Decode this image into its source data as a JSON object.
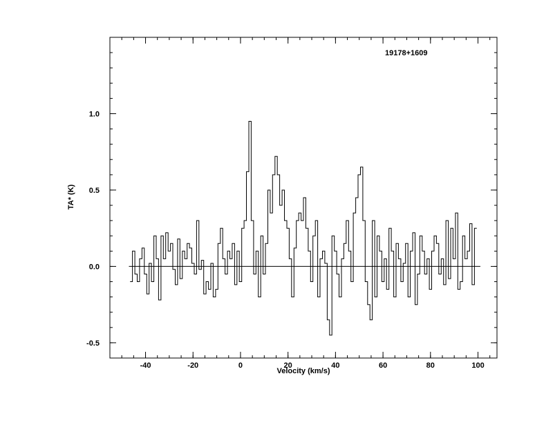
{
  "chart_data": {
    "type": "line",
    "step": true,
    "title": "",
    "annotation": "19178+1609",
    "xlabel": "Velocity (km/s)",
    "ylabel": "TA* (K)",
    "xlim": [
      -55,
      108
    ],
    "ylim": [
      -0.6,
      1.5
    ],
    "xticks": [
      -40,
      -20,
      0,
      20,
      40,
      60,
      80,
      100
    ],
    "xtick_labels": [
      "-40",
      "-20",
      "0",
      "20",
      "40",
      "60",
      "80",
      "100"
    ],
    "yticks": [
      -0.5,
      0.0,
      0.5,
      1.0
    ],
    "ytick_labels": [
      "-0.5",
      "0.0",
      "0.5",
      "1.0"
    ],
    "baseline": 0.0,
    "baseline_range": [
      -47,
      101
    ],
    "colors": {
      "line": "#000000",
      "axes": "#000000",
      "background": "#ffffff"
    },
    "series": [
      {
        "x": [
          -46,
          -45,
          -44,
          -43,
          -42,
          -41,
          -40,
          -39,
          -38,
          -37,
          -36,
          -35,
          -34,
          -33,
          -32,
          -31,
          -30,
          -29,
          -28,
          -27,
          -26,
          -25,
          -24,
          -23,
          -22,
          -21,
          -20,
          -19,
          -18,
          -17,
          -16,
          -15,
          -14,
          -13,
          -12,
          -11,
          -10,
          -9,
          -8,
          -7,
          -6,
          -5,
          -4,
          -3,
          -2,
          -1,
          0,
          1,
          2,
          3,
          4,
          5,
          6,
          7,
          8,
          9,
          10,
          11,
          12,
          13,
          14,
          15,
          16,
          17,
          18,
          19,
          20,
          21,
          22,
          23,
          24,
          25,
          26,
          27,
          28,
          29,
          30,
          31,
          32,
          33,
          34,
          35,
          36,
          37,
          38,
          39,
          40,
          41,
          42,
          43,
          44,
          45,
          46,
          47,
          48,
          49,
          50,
          51,
          52,
          53,
          54,
          55,
          56,
          57,
          58,
          59,
          60,
          61,
          62,
          63,
          64,
          65,
          66,
          67,
          68,
          69,
          70,
          71,
          72,
          73,
          74,
          75,
          76,
          77,
          78,
          79,
          80,
          81,
          82,
          83,
          84,
          85,
          86,
          87,
          88,
          89,
          90,
          91,
          92,
          93,
          94,
          95,
          96,
          97,
          98,
          99
        ],
        "y": [
          -0.1,
          0.1,
          -0.05,
          -0.1,
          0.05,
          0.12,
          -0.05,
          -0.18,
          0.02,
          -0.1,
          0.2,
          0.05,
          -0.22,
          0.2,
          0.05,
          0.22,
          0.1,
          0.15,
          -0.02,
          -0.12,
          0.18,
          -0.08,
          0.1,
          0.05,
          0.15,
          0.12,
          0.02,
          -0.05,
          0.3,
          -0.02,
          0.04,
          -0.18,
          -0.1,
          -0.15,
          0.02,
          -0.2,
          -0.15,
          0.15,
          0.25,
          0.05,
          -0.05,
          0.1,
          0.05,
          0.15,
          -0.12,
          0.1,
          -0.1,
          0.25,
          0.3,
          0.62,
          0.95,
          0.3,
          -0.05,
          0.1,
          -0.2,
          0.2,
          -0.05,
          0.15,
          0.5,
          0.35,
          0.6,
          0.72,
          0.6,
          0.4,
          0.5,
          0.3,
          0.25,
          0.05,
          -0.2,
          0.12,
          0.3,
          0.35,
          0.3,
          0.45,
          0.25,
          0.1,
          -0.1,
          0.2,
          0.3,
          -0.2,
          0.05,
          0.1,
          0.02,
          -0.35,
          -0.45,
          0.2,
          0.1,
          -0.05,
          -0.2,
          0.05,
          0.15,
          0.3,
          0.1,
          -0.1,
          0.35,
          0.45,
          0.6,
          0.65,
          0.3,
          -0.1,
          -0.25,
          -0.35,
          0.3,
          -0.2,
          0.2,
          0.1,
          -0.1,
          0.05,
          -0.15,
          0.25,
          0.1,
          -0.2,
          0.15,
          0.05,
          -0.1,
          0.02,
          0.15,
          -0.2,
          0.1,
          0.22,
          -0.25,
          -0.05,
          0.2,
          0.1,
          -0.05,
          0.05,
          -0.15,
          0.1,
          0.2,
          0.15,
          -0.05,
          0.05,
          -0.12,
          0.3,
          -0.08,
          0.25,
          0.05,
          0.35,
          -0.15,
          -0.1,
          0.2,
          0.05,
          0.1,
          0.28,
          -0.12,
          0.25
        ]
      }
    ]
  }
}
